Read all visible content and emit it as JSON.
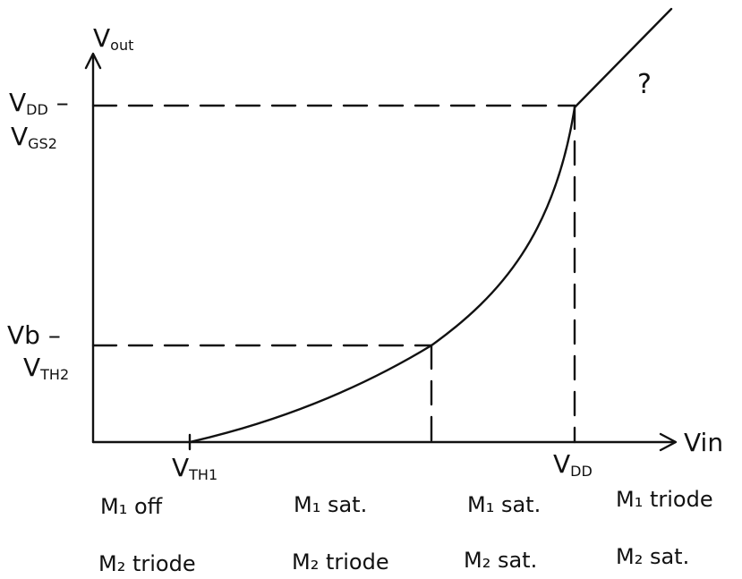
{
  "axes": {
    "y_label": "V",
    "y_label_sub": "out",
    "x_label": "Vin"
  },
  "y_ticks": {
    "upper_line1": "V",
    "upper_line1_sub": "DD",
    "upper_line1_tail": " –",
    "upper_line2": "V",
    "upper_line2_sub": "GS2",
    "lower_line1": "Vb –",
    "lower_line2": "V",
    "lower_line2_sub": "TH2"
  },
  "x_ticks": {
    "vth1": "V",
    "vth1_sub": "TH1",
    "vdd": "V",
    "vdd_sub": "DD"
  },
  "annotation": "?",
  "regions": [
    {
      "m1": "M₁ off",
      "m2": "M₂ triode"
    },
    {
      "m1": "M₁ sat.",
      "m2": "M₂ triode"
    },
    {
      "m1": "M₁ sat.",
      "m2": "M₂ sat."
    },
    {
      "m1": "M₁ triode",
      "m2": "M₂ sat."
    }
  ],
  "colors": {
    "ink": "#111111",
    "background": "#ffffff"
  }
}
